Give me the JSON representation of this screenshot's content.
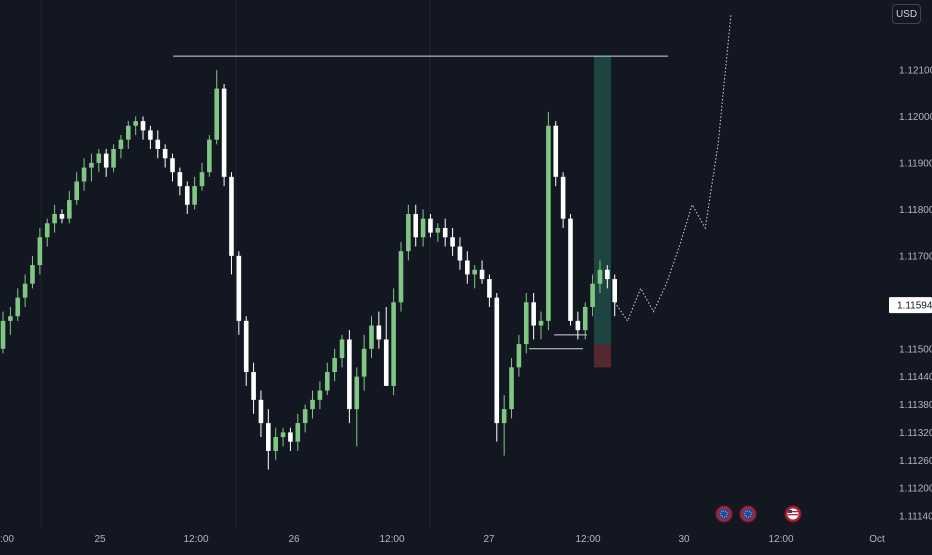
{
  "currency": "USD",
  "colors": {
    "background": "#131722",
    "up": "#81c784",
    "down": "#ffffff",
    "grid": "#1f2430",
    "axis_text": "#b2b5be",
    "target_zone": "#1f4d46",
    "stop_zone": "#5c2a30",
    "price_label_bg": "#ffffff"
  },
  "current_price": "1.11594",
  "chart_data": {
    "type": "candlestick",
    "xlabel": "",
    "ylabel": "",
    "ylim": [
      1.1114,
      1.1222
    ],
    "y_ticks": [
      "1.12100",
      "1.12000",
      "1.11900",
      "1.11800",
      "1.11700",
      "1.11500",
      "1.11440",
      "1.11380",
      "1.11320",
      "1.11260",
      "1.11200",
      "1.11140"
    ],
    "x_ticks": [
      ":00",
      "25",
      "12:00",
      "26",
      "12:00",
      "27",
      "12:00",
      "30",
      "12:00",
      "Oct"
    ],
    "grid": true,
    "series": [
      {
        "values": [
          [
            1.115,
            1.1158,
            1.1149,
            1.1156
          ],
          [
            1.1156,
            1.1159,
            1.1153,
            1.1157
          ],
          [
            1.1157,
            1.1163,
            1.1156,
            1.1161
          ],
          [
            1.1161,
            1.1166,
            1.1159,
            1.1164
          ],
          [
            1.1164,
            1.117,
            1.1163,
            1.1168
          ],
          [
            1.1168,
            1.1176,
            1.1166,
            1.1174
          ],
          [
            1.1174,
            1.1178,
            1.1172,
            1.1177
          ],
          [
            1.1177,
            1.1181,
            1.1175,
            1.1179
          ],
          [
            1.1179,
            1.118,
            1.1177,
            1.1178
          ],
          [
            1.1178,
            1.1184,
            1.1177,
            1.1182
          ],
          [
            1.1182,
            1.1188,
            1.1181,
            1.1186
          ],
          [
            1.1186,
            1.1191,
            1.1184,
            1.1189
          ],
          [
            1.1189,
            1.1192,
            1.1186,
            1.119
          ],
          [
            1.119,
            1.1193,
            1.1188,
            1.1192
          ],
          [
            1.1192,
            1.1193,
            1.1187,
            1.1189
          ],
          [
            1.1189,
            1.1194,
            1.1188,
            1.1193
          ],
          [
            1.1193,
            1.1196,
            1.1191,
            1.1195
          ],
          [
            1.1195,
            1.1199,
            1.1193,
            1.1198
          ],
          [
            1.1198,
            1.12,
            1.1196,
            1.1199
          ],
          [
            1.1199,
            1.12,
            1.1195,
            1.1197
          ],
          [
            1.1197,
            1.1198,
            1.1193,
            1.1195
          ],
          [
            1.1195,
            1.1197,
            1.1191,
            1.1193
          ],
          [
            1.1193,
            1.1194,
            1.1189,
            1.1191
          ],
          [
            1.1191,
            1.1192,
            1.1186,
            1.1188
          ],
          [
            1.1188,
            1.1189,
            1.1183,
            1.1185
          ],
          [
            1.1185,
            1.1186,
            1.1179,
            1.1181
          ],
          [
            1.1181,
            1.1187,
            1.118,
            1.1185
          ],
          [
            1.1185,
            1.119,
            1.1184,
            1.1188
          ],
          [
            1.1188,
            1.1196,
            1.1187,
            1.1195
          ],
          [
            1.1195,
            1.121,
            1.1194,
            1.1206
          ],
          [
            1.1206,
            1.1207,
            1.1185,
            1.1187
          ],
          [
            1.1187,
            1.1188,
            1.1166,
            1.117
          ],
          [
            1.117,
            1.1171,
            1.1153,
            1.1156
          ],
          [
            1.1156,
            1.1157,
            1.1142,
            1.1145
          ],
          [
            1.1145,
            1.1147,
            1.1136,
            1.1139
          ],
          [
            1.1139,
            1.1141,
            1.1131,
            1.1134
          ],
          [
            1.1134,
            1.1137,
            1.1124,
            1.1128
          ],
          [
            1.1128,
            1.1133,
            1.1126,
            1.1131
          ],
          [
            1.1131,
            1.1133,
            1.1129,
            1.1132
          ],
          [
            1.1132,
            1.1133,
            1.1128,
            1.113
          ],
          [
            1.113,
            1.1136,
            1.1128,
            1.1134
          ],
          [
            1.1134,
            1.1138,
            1.1132,
            1.1137
          ],
          [
            1.1137,
            1.1141,
            1.1135,
            1.1139
          ],
          [
            1.1139,
            1.1143,
            1.1137,
            1.1141
          ],
          [
            1.1141,
            1.1147,
            1.114,
            1.1145
          ],
          [
            1.1145,
            1.115,
            1.1143,
            1.1148
          ],
          [
            1.1148,
            1.1153,
            1.1146,
            1.1152
          ],
          [
            1.1152,
            1.1154,
            1.1134,
            1.1137
          ],
          [
            1.1137,
            1.1146,
            1.1129,
            1.1144
          ],
          [
            1.1144,
            1.1153,
            1.1141,
            1.115
          ],
          [
            1.115,
            1.1157,
            1.1148,
            1.1155
          ],
          [
            1.1155,
            1.1158,
            1.115,
            1.1152
          ],
          [
            1.1152,
            1.1159,
            1.1144,
            1.1142
          ],
          [
            1.1142,
            1.1163,
            1.114,
            1.116
          ],
          [
            1.116,
            1.1173,
            1.1158,
            1.1171
          ],
          [
            1.1171,
            1.1181,
            1.1169,
            1.1179
          ],
          [
            1.1179,
            1.1181,
            1.1172,
            1.1174
          ],
          [
            1.1174,
            1.118,
            1.1172,
            1.1178
          ],
          [
            1.1178,
            1.1179,
            1.1174,
            1.1175
          ],
          [
            1.1175,
            1.1177,
            1.1173,
            1.1176
          ],
          [
            1.1176,
            1.1178,
            1.1172,
            1.1174
          ],
          [
            1.1174,
            1.1176,
            1.117,
            1.1172
          ],
          [
            1.1172,
            1.1174,
            1.1167,
            1.1169
          ],
          [
            1.1169,
            1.1171,
            1.1164,
            1.1166
          ],
          [
            1.1166,
            1.1168,
            1.1163,
            1.1167
          ],
          [
            1.1167,
            1.1169,
            1.1164,
            1.1165
          ],
          [
            1.1165,
            1.1166,
            1.1159,
            1.1161
          ],
          [
            1.1161,
            1.1162,
            1.113,
            1.1134
          ],
          [
            1.1134,
            1.114,
            1.1127,
            1.1137
          ],
          [
            1.1137,
            1.1148,
            1.1135,
            1.1146
          ],
          [
            1.1146,
            1.1153,
            1.1144,
            1.1151
          ],
          [
            1.1151,
            1.1162,
            1.1149,
            1.116
          ],
          [
            1.116,
            1.1162,
            1.1152,
            1.1155
          ],
          [
            1.1155,
            1.1158,
            1.1152,
            1.1156
          ],
          [
            1.1156,
            1.1201,
            1.1154,
            1.1198
          ],
          [
            1.1198,
            1.1199,
            1.1185,
            1.1187
          ],
          [
            1.1187,
            1.1188,
            1.1176,
            1.1178
          ],
          [
            1.1178,
            1.1179,
            1.1155,
            1.1156
          ],
          [
            1.1156,
            1.1158,
            1.1152,
            1.1154
          ],
          [
            1.1154,
            1.116,
            1.1152,
            1.1159
          ],
          [
            1.1159,
            1.1166,
            1.1157,
            1.1164
          ],
          [
            1.1164,
            1.1169,
            1.1162,
            1.1167
          ],
          [
            1.1167,
            1.1168,
            1.1163,
            1.1165
          ],
          [
            1.1165,
            1.1166,
            1.1157,
            1.116
          ]
        ]
      }
    ],
    "annotations": {
      "resistance_line": 1.1213,
      "support_line_1": 1.1153,
      "support_line_2": 1.115,
      "target_zone": [
        1.1151,
        1.1213
      ],
      "stop_zone": [
        1.1146,
        1.1151
      ],
      "projection_path": [
        1.116,
        1.1156,
        1.1163,
        1.1158,
        1.1164,
        1.1172,
        1.1181,
        1.1176,
        1.1194,
        1.1222
      ]
    }
  },
  "icons": [
    "eu-flag-icon",
    "eu-flag-icon",
    "us-flag-icon"
  ]
}
